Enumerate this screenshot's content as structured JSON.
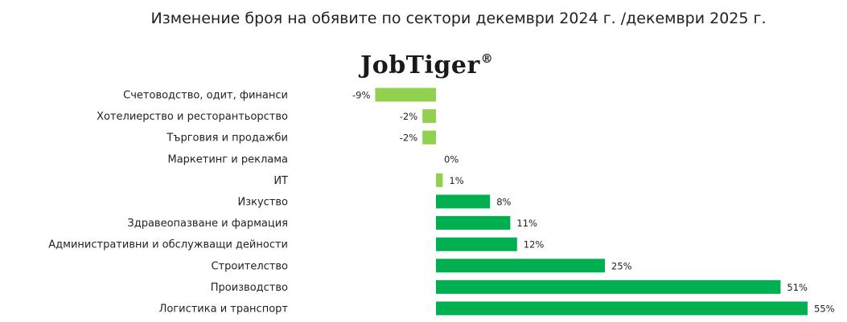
{
  "header": {
    "title": "Изменение броя на обявите по сектори декември 2024 г. /декември 2025 г.",
    "logo_text": "JobTiger",
    "logo_mark": "®"
  },
  "colors": {
    "negative_bar": "#92d050",
    "small_positive_bar": "#92d050",
    "positive_bar": "#00b050"
  },
  "chart_data": {
    "type": "bar",
    "orientation": "horizontal",
    "title": "Изменение броя на обявите по сектори декември 2024 г. /декември 2025 г.",
    "categories": [
      "Счетоводство, одит, финанси",
      "Хотелиерство и ресторантьорство",
      "Търговия и продажби",
      "Маркетинг и реклама",
      "ИТ",
      "Изкуство",
      "Здравеопазване и фармация",
      "Административни и обслужващи дейности",
      "Строителство",
      "Производство",
      "Логистика и транспорт"
    ],
    "values": [
      -9,
      -2,
      -2,
      0,
      1,
      8,
      11,
      12,
      25,
      51,
      55
    ],
    "value_labels": [
      "-9%",
      "-2%",
      "-2%",
      "0%",
      "1%",
      "8%",
      "11%",
      "12%",
      "25%",
      "51%",
      "55%"
    ],
    "unit": "%",
    "xlim": [
      -9,
      55
    ],
    "grid": false,
    "legend": "none"
  }
}
